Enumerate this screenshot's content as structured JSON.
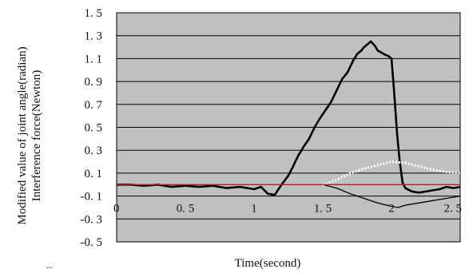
{
  "chart_data": {
    "type": "line",
    "title": "",
    "xlabel": "Time(second)",
    "ylabel_lines": [
      "Modified value of joint angle(radian)",
      "Interference force(Newton)"
    ],
    "footer_text": "...",
    "xlim": [
      0,
      2.5
    ],
    "ylim": [
      -0.5,
      1.5
    ],
    "x_ticks": [
      {
        "value": 0,
        "label": "0"
      },
      {
        "value": 0.5,
        "label": "0. 5"
      },
      {
        "value": 1,
        "label": "1"
      },
      {
        "value": 1.5,
        "label": "1. 5"
      },
      {
        "value": 2,
        "label": "2"
      },
      {
        "value": 2.5,
        "label": "2. 5"
      }
    ],
    "y_ticks": [
      {
        "value": 1.5,
        "label": "1. 5"
      },
      {
        "value": 1.3,
        "label": "1. 3"
      },
      {
        "value": 1.1,
        "label": "1. 1"
      },
      {
        "value": 0.9,
        "label": "0. 9"
      },
      {
        "value": 0.7,
        "label": "0. 7"
      },
      {
        "value": 0.5,
        "label": "0. 5"
      },
      {
        "value": 0.3,
        "label": "0. 3"
      },
      {
        "value": 0.1,
        "label": "0. 1"
      },
      {
        "value": -0.1,
        "label": "-0. 1"
      },
      {
        "value": -0.3,
        "label": "-0. 3"
      },
      {
        "value": -0.5,
        "label": "-0. 5"
      }
    ],
    "grid": true,
    "legend": "none",
    "background_color": "#c0c0c0",
    "series": [
      {
        "color": "#000000",
        "style": "thick",
        "x": [
          0,
          0.1,
          0.2,
          0.3,
          0.4,
          0.5,
          0.6,
          0.7,
          0.8,
          0.9,
          1.0,
          1.05,
          1.1,
          1.15,
          1.2,
          1.25,
          1.28,
          1.32,
          1.36,
          1.4,
          1.44,
          1.48,
          1.52,
          1.56,
          1.6,
          1.64,
          1.68,
          1.72,
          1.75,
          1.78,
          1.8,
          1.82,
          1.85,
          1.88,
          1.9,
          1.93,
          1.96,
          1.98,
          2.0,
          2.02,
          2.04,
          2.06,
          2.08,
          2.1,
          2.15,
          2.2,
          2.25,
          2.3,
          2.35,
          2.4,
          2.45,
          2.5
        ],
        "y": [
          0.0,
          0.0,
          -0.01,
          0.0,
          -0.02,
          -0.01,
          -0.02,
          -0.01,
          -0.03,
          -0.02,
          -0.04,
          -0.02,
          -0.08,
          -0.09,
          0.0,
          0.08,
          0.15,
          0.25,
          0.33,
          0.4,
          0.5,
          0.58,
          0.65,
          0.72,
          0.82,
          0.92,
          0.98,
          1.08,
          1.14,
          1.17,
          1.2,
          1.22,
          1.25,
          1.21,
          1.17,
          1.15,
          1.13,
          1.12,
          1.1,
          0.8,
          0.45,
          0.2,
          0.02,
          -0.03,
          -0.06,
          -0.07,
          -0.06,
          -0.05,
          -0.04,
          -0.02,
          -0.03,
          -0.02
        ]
      },
      {
        "color": "#000000",
        "style": "thin",
        "x": [
          1.5,
          1.6,
          1.7,
          1.8,
          1.9,
          2.0,
          2.05,
          2.1,
          2.2,
          2.3,
          2.4,
          2.5
        ],
        "y": [
          0.0,
          -0.03,
          -0.08,
          -0.12,
          -0.16,
          -0.19,
          -0.2,
          -0.18,
          -0.16,
          -0.14,
          -0.12,
          -0.1
        ]
      },
      {
        "color": "#ffffff",
        "style": "dotted",
        "x": [
          1.5,
          1.6,
          1.7,
          1.8,
          1.9,
          2.0,
          2.1,
          2.2,
          2.3,
          2.4,
          2.5
        ],
        "y": [
          0.0,
          0.04,
          0.1,
          0.14,
          0.17,
          0.2,
          0.19,
          0.16,
          0.13,
          0.11,
          0.1
        ]
      },
      {
        "color": "#b22222",
        "style": "thin",
        "x": [
          0,
          2.5
        ],
        "y": [
          0.0,
          0.0
        ]
      }
    ]
  }
}
